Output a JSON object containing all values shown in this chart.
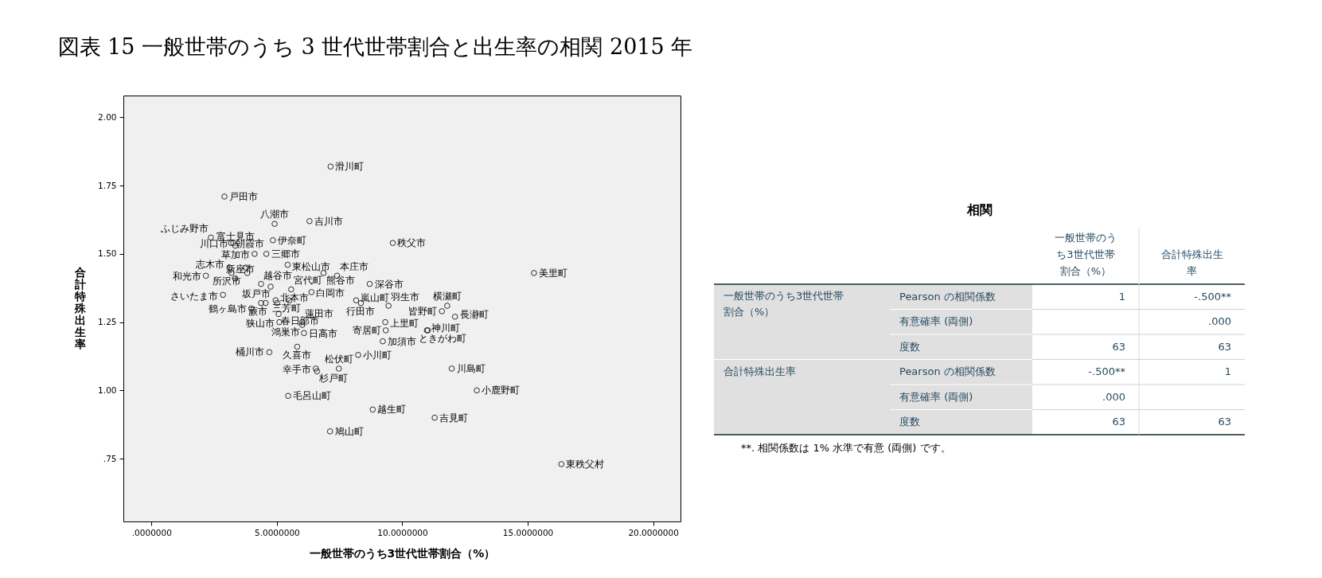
{
  "chart_data": [
    {
      "type": "scatter",
      "title": "図表 15 一般世帯のうち 3 世代世帯割合と出生率の相関 2015 年",
      "xlabel": "一般世帯のうち3世代世帯割合（%）",
      "ylabel": "合計特殊出生率",
      "xlim": [
        -1.12,
        21.09
      ],
      "ylim": [
        0.52,
        2.08
      ],
      "xticks": [
        {
          "value": 0,
          "label": ".0000000"
        },
        {
          "value": 5,
          "label": "5.0000000"
        },
        {
          "value": 10,
          "label": "10.0000000"
        },
        {
          "value": 15,
          "label": "15.0000000"
        },
        {
          "value": 20,
          "label": "20.0000000"
        }
      ],
      "yticks": [
        {
          "value": 2,
          "label": "2.00"
        },
        1.75,
        {
          "value": 1.5,
          "label": "1.50"
        },
        1.25,
        {
          "value": 1,
          "label": "1.00"
        },
        {
          "value": 0.75,
          "label": ".75"
        }
      ],
      "marker": "circle",
      "series": [
        {
          "color": "#2b2b2b",
          "x": [
            7.14,
            2.91,
            4.91,
            6.3,
            2.37,
            3.17,
            3.34,
            3.26,
            4.84,
            4.11,
            4.58,
            5.43,
            6.86,
            7.4,
            8.7,
            9.62,
            15.25,
            3.11,
            3.77,
            3.19,
            3.82,
            3.34,
            2.17,
            2.85,
            4.37,
            4.75,
            5.57,
            6.38,
            4.37,
            4.55,
            4.95,
            5.01,
            5.5,
            3.98,
            5.07,
            5.1,
            6.01,
            6.01,
            6.08,
            5.81,
            4.7,
            6.55,
            6.6,
            7.47,
            8.24,
            8.16,
            8.35,
            9.45,
            11.58,
            11.79,
            12.1,
            9.32,
            9.34,
            9.22,
            10.98,
            11.02,
            5.45,
            8.82,
            7.12,
            11.97,
            12.97,
            11.29,
            16.34
          ],
          "values": [
            1.82,
            1.71,
            1.61,
            1.62,
            1.56,
            1.54,
            1.53,
            1.54,
            1.55,
            1.5,
            1.5,
            1.46,
            1.43,
            1.42,
            1.39,
            1.54,
            1.43,
            1.45,
            1.45,
            1.43,
            1.43,
            1.41,
            1.42,
            1.35,
            1.39,
            1.38,
            1.37,
            1.36,
            1.32,
            1.32,
            1.33,
            1.32,
            1.33,
            1.3,
            1.28,
            1.25,
            1.25,
            1.24,
            1.21,
            1.16,
            1.14,
            1.08,
            1.07,
            1.08,
            1.13,
            1.33,
            1.32,
            1.31,
            1.29,
            1.31,
            1.27,
            1.25,
            1.22,
            1.18,
            1.22,
            1.22,
            0.98,
            0.93,
            0.85,
            1.08,
            1.0,
            0.9,
            0.73
          ]
        }
      ],
      "annotations": [
        {
          "text": "滑川町",
          "x": 7.14,
          "y": 1.82
        },
        {
          "text": "戸田市",
          "x": 2.91,
          "y": 1.71
        },
        {
          "text": "八潮市",
          "x": 4.91,
          "y": 1.61
        },
        {
          "text": "吉川市",
          "x": 6.3,
          "y": 1.62
        },
        {
          "text": "ふじみ野市",
          "x": 2.37,
          "y": 1.56
        },
        {
          "text": "朝霞市",
          "x": 3.17,
          "y": 1.54
        },
        {
          "text": "富士見市",
          "x": 3.34,
          "y": 1.53
        },
        {
          "text": "川口市",
          "x": 3.26,
          "y": 1.54
        },
        {
          "text": "伊奈町",
          "x": 4.84,
          "y": 1.55
        },
        {
          "text": "草加市",
          "x": 4.11,
          "y": 1.5
        },
        {
          "text": "三郷市",
          "x": 4.58,
          "y": 1.5
        },
        {
          "text": "東松山市",
          "x": 5.43,
          "y": 1.46
        },
        {
          "text": "熊谷市",
          "x": 6.86,
          "y": 1.43
        },
        {
          "text": "本庄市",
          "x": 7.4,
          "y": 1.42
        },
        {
          "text": "深谷市",
          "x": 8.7,
          "y": 1.39
        },
        {
          "text": "秩父市",
          "x": 9.62,
          "y": 1.54
        },
        {
          "text": "美里町",
          "x": 15.25,
          "y": 1.43
        },
        {
          "text": "志木市",
          "x": 3.11,
          "y": 1.45
        },
        {
          "text": "所沢市",
          "x": 3.19,
          "y": 1.43
        },
        {
          "text": "新座市",
          "x": 3.34,
          "y": 1.41
        },
        {
          "text": "和光市",
          "x": 2.17,
          "y": 1.42
        },
        {
          "text": "さいたま市",
          "x": 2.85,
          "y": 1.35
        },
        {
          "text": "越谷市",
          "x": 4.37,
          "y": 1.39
        },
        {
          "text": "宮代町",
          "x": 5.57,
          "y": 1.37
        },
        {
          "text": "白岡市",
          "x": 6.38,
          "y": 1.36
        },
        {
          "text": "坂戸市",
          "x": 4.37,
          "y": 1.32
        },
        {
          "text": "蕨市",
          "x": 4.55,
          "y": 1.32
        },
        {
          "text": "北本市",
          "x": 4.95,
          "y": 1.33
        },
        {
          "text": "三芳町",
          "x": 5.5,
          "y": 1.33
        },
        {
          "text": "鶴ヶ島市",
          "x": 3.98,
          "y": 1.3
        },
        {
          "text": "春日部市",
          "x": 5.07,
          "y": 1.28
        },
        {
          "text": "狭山市",
          "x": 5.1,
          "y": 1.25
        },
        {
          "text": "蓮田市",
          "x": 6.01,
          "y": 1.25
        },
        {
          "text": "鴻巣市",
          "x": 6.01,
          "y": 1.24
        },
        {
          "text": "日高市",
          "x": 6.08,
          "y": 1.21
        },
        {
          "text": "久喜市",
          "x": 5.81,
          "y": 1.16
        },
        {
          "text": "桶川市",
          "x": 4.7,
          "y": 1.14
        },
        {
          "text": "幸手市",
          "x": 6.55,
          "y": 1.08
        },
        {
          "text": "杉戸町",
          "x": 6.6,
          "y": 1.07
        },
        {
          "text": "松伏町",
          "x": 7.47,
          "y": 1.08
        },
        {
          "text": "小川町",
          "x": 8.24,
          "y": 1.13
        },
        {
          "text": "嵐山町",
          "x": 8.16,
          "y": 1.33
        },
        {
          "text": "行田市",
          "x": 8.35,
          "y": 1.32
        },
        {
          "text": "羽生市",
          "x": 9.45,
          "y": 1.31
        },
        {
          "text": "皆野町",
          "x": 11.58,
          "y": 1.29
        },
        {
          "text": "横瀬町",
          "x": 11.79,
          "y": 1.31
        },
        {
          "text": "長瀞町",
          "x": 12.1,
          "y": 1.27
        },
        {
          "text": "上里町",
          "x": 9.32,
          "y": 1.25
        },
        {
          "text": "寄居町",
          "x": 9.34,
          "y": 1.22
        },
        {
          "text": "加須市",
          "x": 9.22,
          "y": 1.18
        },
        {
          "text": "神川町",
          "x": 10.98,
          "y": 1.22
        },
        {
          "text": "ときがわ町",
          "x": 11.02,
          "y": 1.22
        },
        {
          "text": "毛呂山町",
          "x": 5.45,
          "y": 0.98
        },
        {
          "text": "越生町",
          "x": 8.82,
          "y": 0.93
        },
        {
          "text": "鳩山町",
          "x": 7.12,
          "y": 0.85
        },
        {
          "text": "川島町",
          "x": 11.97,
          "y": 1.08
        },
        {
          "text": "小鹿野町",
          "x": 12.97,
          "y": 1.0
        },
        {
          "text": "吉見町",
          "x": 11.29,
          "y": 0.9
        },
        {
          "text": "東秩父村",
          "x": 16.34,
          "y": 0.73
        }
      ]
    },
    {
      "type": "other",
      "title": "相関",
      "categories": [
        "一般世帯のうち3世代世帯割合（%）",
        "合計特殊出生率"
      ],
      "y_categories": [
        "一般世帯のうち3世代世帯割合（%）",
        null,
        null,
        "合計特殊出生率",
        null,
        null
      ],
      "y2_categories": [
        "Pearson の相関係数",
        "有意確率 (両側)",
        "度数",
        "Pearson の相関係数",
        "有意確率 (両側)",
        "度数"
      ],
      "cell_labels": [
        [
          "1",
          "-.500**"
        ],
        [
          null,
          ".000"
        ],
        [
          "63",
          "63"
        ],
        [
          "-.500**",
          "1"
        ],
        [
          ".000",
          null
        ],
        [
          "63",
          "63"
        ]
      ],
      "annotations": [
        "**. 相関係数は 1% 水準で有意 (両側) です。"
      ]
    }
  ]
}
